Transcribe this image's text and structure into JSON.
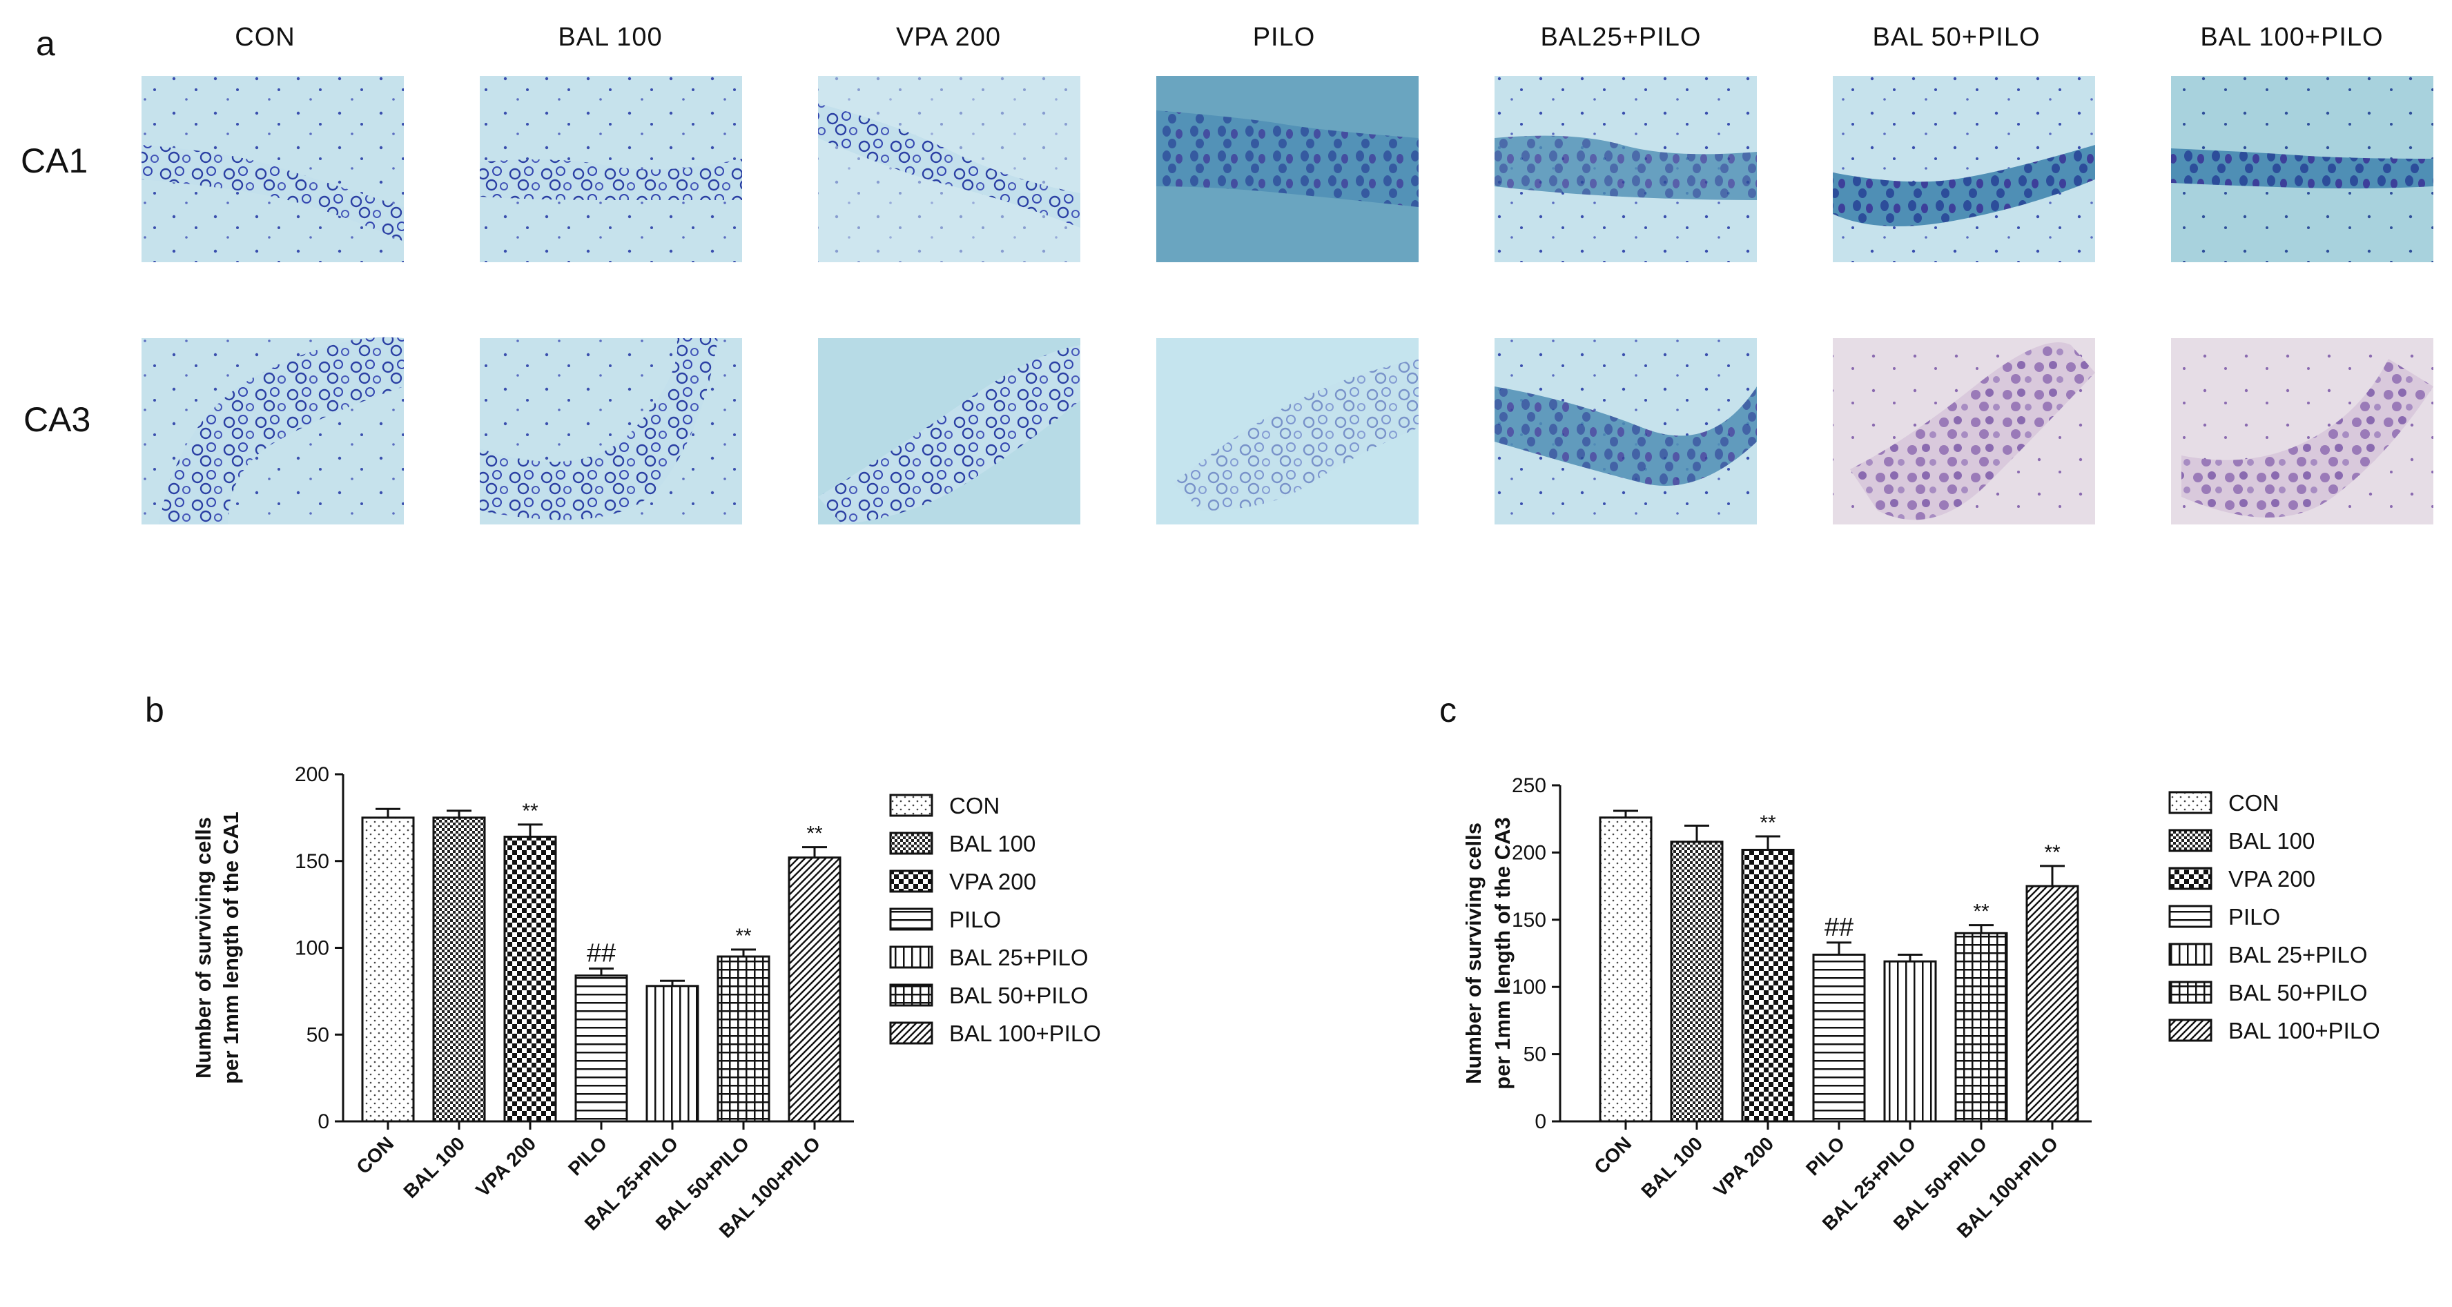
{
  "panel_a": {
    "letter": "a",
    "columns": [
      "CON",
      "BAL 100",
      "VPA 200",
      "PILO",
      "BAL25+PILO",
      "BAL 50+PILO",
      "BAL 100+PILO"
    ],
    "rows": [
      "CA1",
      "CA3"
    ]
  },
  "colors": {
    "axis": "#111111",
    "bar_fill": "#ffffff"
  },
  "chart_data": [
    {
      "panel": "b",
      "type": "bar",
      "title": "",
      "xlabel": "",
      "ylabel_line1": "Number of surviving cells",
      "ylabel_line2": "per 1mm length of the CA1",
      "ylim": [
        0,
        200
      ],
      "yticks": [
        "0",
        "50",
        "100",
        "150",
        "200"
      ],
      "categories": [
        "CON",
        "BAL 100",
        "VPA 200",
        "PILO",
        "BAL 25+PILO",
        "BAL 50+PILO",
        "BAL 100+PILO"
      ],
      "values": [
        175,
        175,
        164,
        84,
        78,
        95,
        152
      ],
      "errors": [
        5,
        4,
        7,
        4,
        3,
        4,
        6
      ],
      "annotations": [
        "",
        "",
        "**",
        "##",
        "",
        "**",
        "**"
      ],
      "patterns": [
        "dots",
        "checker",
        "xcheck",
        "hlines",
        "vlines",
        "grid",
        "diag"
      ],
      "legend": [
        "CON",
        "BAL 100",
        "VPA 200",
        "PILO",
        "BAL 25+PILO",
        "BAL 50+PILO",
        "BAL 100+PILO"
      ]
    },
    {
      "panel": "c",
      "type": "bar",
      "title": "",
      "xlabel": "",
      "ylabel_line1": "Number of surviving cells",
      "ylabel_line2": "per 1mm length of the CA3",
      "ylim": [
        0,
        250
      ],
      "yticks": [
        "0",
        "50",
        "100",
        "150",
        "200",
        "250"
      ],
      "categories": [
        "CON",
        "BAL 100",
        "VPA 200",
        "PILO",
        "BAL 25+PILO",
        "BAL 50+PILO",
        "BAL 100+PILO"
      ],
      "values": [
        226,
        208,
        202,
        124,
        119,
        140,
        175
      ],
      "errors": [
        5,
        12,
        10,
        9,
        5,
        6,
        15
      ],
      "annotations": [
        "",
        "",
        "**",
        "##",
        "",
        "**",
        "**"
      ],
      "patterns": [
        "dots",
        "checker",
        "xcheck",
        "hlines",
        "vlines",
        "grid",
        "diag"
      ],
      "legend": [
        "CON",
        "BAL 100",
        "VPA 200",
        "PILO",
        "BAL 25+PILO",
        "BAL 50+PILO",
        "BAL 100+PILO"
      ]
    }
  ]
}
